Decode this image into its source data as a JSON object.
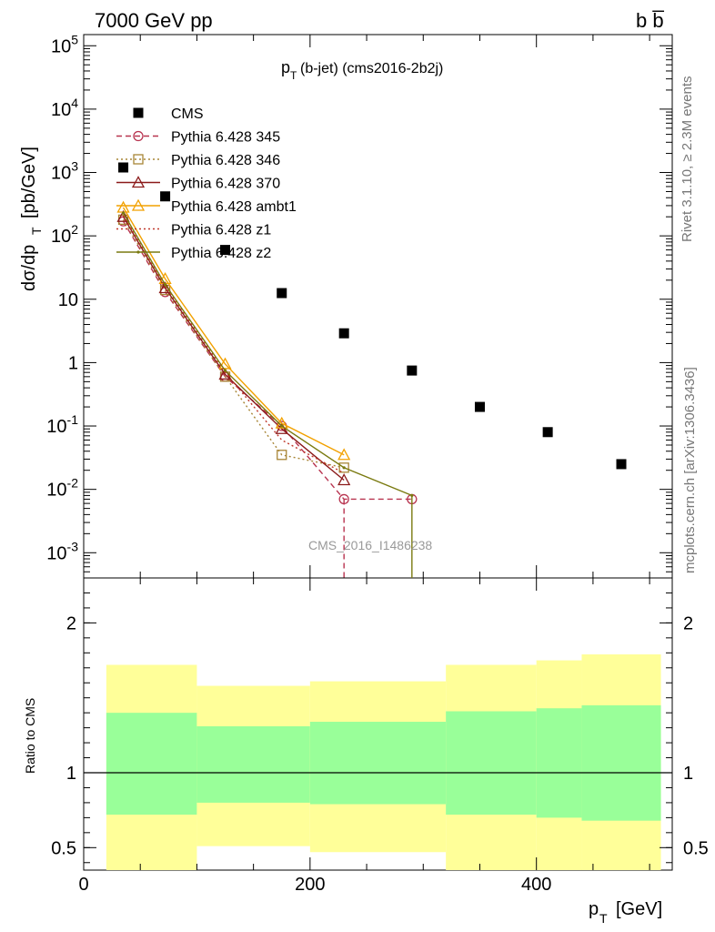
{
  "header": {
    "left": "7000 GeV pp",
    "right": "b b̅"
  },
  "side_text": {
    "rivet": "Rivet 3.1.10, ≥ 2.3M events",
    "mcplots": "mcplots.cern.ch [arXiv:1306.3436]"
  },
  "watermark": "CMS_2016_I1486238",
  "colors": {
    "cms": "#000000",
    "p345": "#b8334f",
    "p346": "#a88536",
    "p370": "#8b1a1a",
    "ambt1": "#f2a100",
    "z1": "#c0392b",
    "z2": "#7a7a10",
    "band_outer": "#ffff99",
    "band_inner": "#99ff99"
  },
  "chart_data": [
    {
      "type": "scatter",
      "title": "p_T(b-jet) (cms2016-2b2j)",
      "ylabel": "dσ/dp_T [pb/GeV]",
      "xlabel": "p_T [GeV]",
      "x_scale": "linear",
      "y_scale": "log",
      "xlim": [
        0,
        520
      ],
      "ylim": [
        0.0004,
        150000
      ],
      "x_ticks": [
        "0",
        "200",
        "400"
      ],
      "y_ticks": [
        "10^5",
        "10^4",
        "10^3",
        "10^2",
        "10",
        "1",
        "10^-1",
        "10^-2",
        "10^-3"
      ],
      "legend_position": "top-left",
      "series": [
        {
          "name": "CMS",
          "key": "cms",
          "marker": "square",
          "points": [
            [
              35,
              1200
            ],
            [
              72,
              420
            ],
            [
              125,
              60
            ],
            [
              175,
              12.5
            ],
            [
              230,
              2.9
            ],
            [
              290,
              0.75
            ],
            [
              350,
              0.2
            ],
            [
              410,
              0.08
            ],
            [
              475,
              0.025
            ]
          ]
        },
        {
          "name": "Pythia 6.428 345",
          "key": "p345",
          "marker": "circle",
          "dash": "6,4",
          "points": [
            [
              35,
              170
            ],
            [
              72,
              13
            ],
            [
              125,
              0.6
            ],
            [
              175,
              0.1
            ],
            [
              230,
              0.007
            ],
            [
              290,
              0.007
            ]
          ]
        },
        {
          "name": "Pythia 6.428 346",
          "key": "p346",
          "marker": "square-open",
          "dash": "2,3",
          "points": [
            [
              35,
              180
            ],
            [
              72,
              14
            ],
            [
              125,
              0.6
            ],
            [
              175,
              0.035
            ],
            [
              230,
              0.022
            ]
          ]
        },
        {
          "name": "Pythia 6.428 370",
          "key": "p370",
          "marker": "triangle",
          "dash": "",
          "points": [
            [
              35,
              200
            ],
            [
              72,
              15
            ],
            [
              125,
              0.65
            ],
            [
              175,
              0.09
            ],
            [
              230,
              0.014
            ]
          ]
        },
        {
          "name": "Pythia 6.428 ambt1",
          "key": "ambt1",
          "marker": "triangle",
          "dash": "",
          "points": [
            [
              35,
              280
            ],
            [
              72,
              21
            ],
            [
              125,
              0.95
            ],
            [
              175,
              0.11
            ],
            [
              230,
              0.035
            ]
          ]
        },
        {
          "name": "Pythia 6.428 z1",
          "key": "z1",
          "marker": "none",
          "dash": "2,3",
          "points": [
            [
              35,
              210
            ],
            [
              72,
              16
            ],
            [
              125,
              0.7
            ],
            [
              175,
              0.06
            ],
            [
              230,
              0.018
            ]
          ]
        },
        {
          "name": "Pythia 6.428 z2",
          "key": "z2",
          "marker": "dot",
          "dash": "",
          "points": [
            [
              35,
              230
            ],
            [
              72,
              17
            ],
            [
              125,
              0.75
            ],
            [
              175,
              0.1
            ],
            [
              230,
              0.022
            ],
            [
              290,
              0.008
            ]
          ]
        }
      ]
    },
    {
      "type": "area",
      "ylabel": "Ratio to CMS",
      "xlim": [
        0,
        520
      ],
      "ylim": [
        0.35,
        2.3
      ],
      "y_ticks": [
        "0.5",
        "1",
        "2"
      ],
      "reference_line": 1,
      "bands": [
        {
          "x": [
            20,
            100
          ],
          "outer": [
            0.35,
            1.72
          ],
          "inner": [
            0.72,
            1.4
          ]
        },
        {
          "x": [
            100,
            200
          ],
          "outer": [
            0.51,
            1.58
          ],
          "inner": [
            0.8,
            1.31
          ]
        },
        {
          "x": [
            200,
            320
          ],
          "outer": [
            0.47,
            1.61
          ],
          "inner": [
            0.79,
            1.34
          ]
        },
        {
          "x": [
            320,
            400
          ],
          "outer": [
            0.35,
            1.72
          ],
          "inner": [
            0.72,
            1.41
          ]
        },
        {
          "x": [
            400,
            440
          ],
          "outer": [
            0.35,
            1.75
          ],
          "inner": [
            0.7,
            1.43
          ]
        },
        {
          "x": [
            440,
            510
          ],
          "outer": [
            0.35,
            1.79
          ],
          "inner": [
            0.68,
            1.45
          ]
        }
      ]
    }
  ]
}
